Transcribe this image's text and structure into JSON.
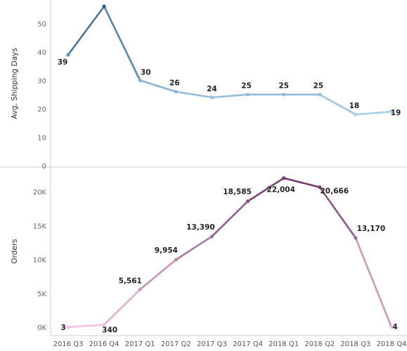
{
  "chart_data": [
    {
      "type": "line",
      "title": "",
      "xlabel": "",
      "ylabel": "Avg. Shipping Days",
      "ylim": [
        0,
        58
      ],
      "yticks": [
        0,
        10,
        20,
        30,
        40,
        50
      ],
      "tick_labels": [
        "0",
        "10",
        "20",
        "30",
        "40",
        "50"
      ],
      "categories": [
        "2016 Q3",
        "2016 Q4",
        "2017 Q1",
        "2017 Q2",
        "2017 Q3",
        "2017 Q4",
        "2018 Q1",
        "2018 Q2",
        "2018 Q3",
        "2018 Q4"
      ],
      "values": [
        39,
        56,
        30,
        26,
        24,
        25,
        25,
        25,
        18,
        19
      ],
      "data_labels": [
        "39",
        "56",
        "30",
        "26",
        "24",
        "25",
        "25",
        "25",
        "18",
        "19"
      ],
      "color_scale": [
        "#a9d1ea",
        "#2b5d8c"
      ],
      "grid": false
    },
    {
      "type": "line",
      "title": "",
      "xlabel": "",
      "ylabel": "Orders",
      "ylim": [
        0,
        22800
      ],
      "yticks": [
        0,
        5000,
        10000,
        15000,
        20000
      ],
      "tick_labels": [
        "0K",
        "5K",
        "10K",
        "15K",
        "20K"
      ],
      "categories": [
        "2016 Q3",
        "2016 Q4",
        "2017 Q1",
        "2017 Q2",
        "2017 Q3",
        "2017 Q4",
        "2018 Q1",
        "2018 Q2",
        "2018 Q3",
        "2018 Q4"
      ],
      "values": [
        3,
        340,
        5561,
        9954,
        13390,
        18585,
        22004,
        20666,
        13170,
        4
      ],
      "data_labels": [
        "3",
        "340",
        "5,561",
        "9,954",
        "13,390",
        "18,585",
        "22,004",
        "20,666",
        "13,170",
        "4"
      ],
      "color_scale": [
        "#f0c2e0",
        "#74366e"
      ],
      "grid": false
    }
  ]
}
